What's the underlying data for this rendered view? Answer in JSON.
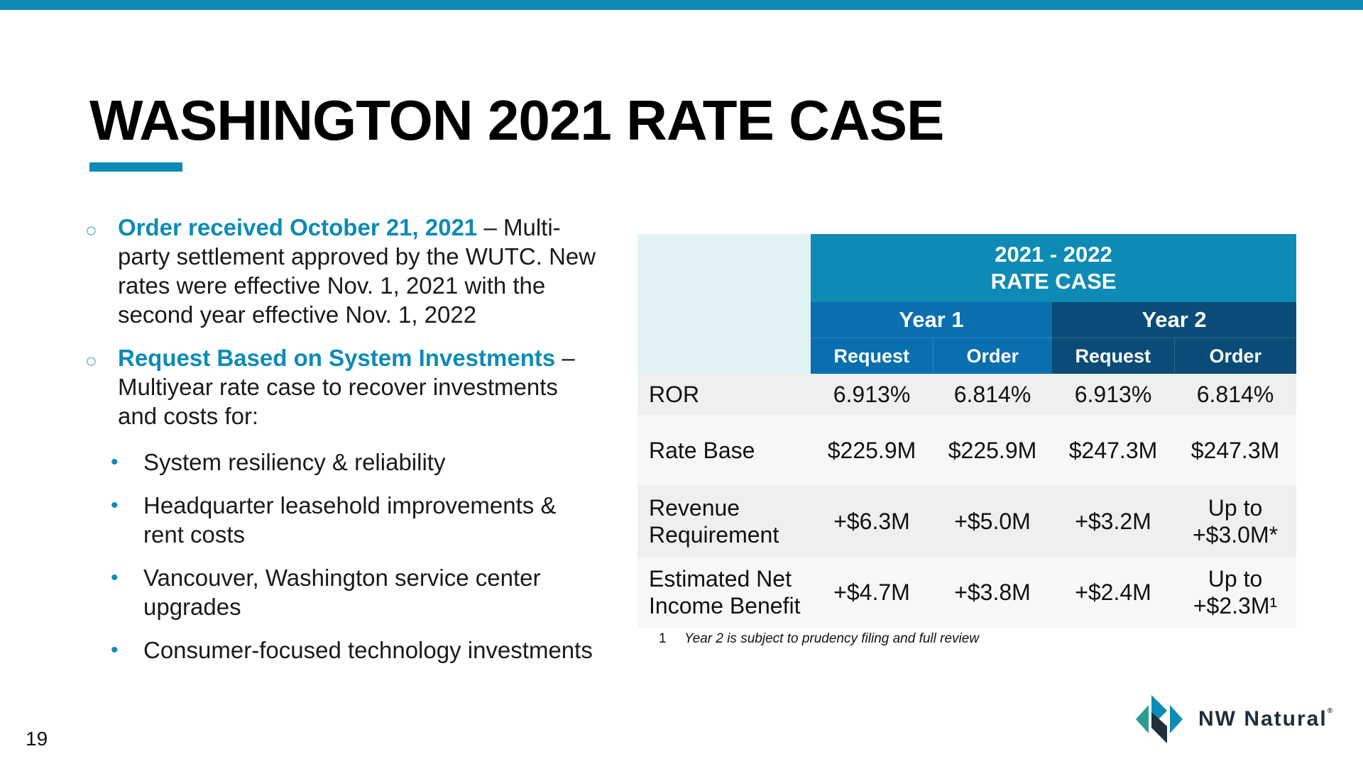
{
  "title": "WASHINGTON 2021 RATE CASE",
  "page_number": "19",
  "bullets": [
    {
      "lead": "Order received October 21, 2021",
      "text": " – Multi-party settlement approved by the WUTC. New rates were effective Nov. 1, 2021 with the second year effective Nov. 1, 2022"
    },
    {
      "lead": "Request Based on System Investments",
      "text": " – Multiyear rate case to recover investments and costs for:"
    }
  ],
  "sub_bullets": [
    "System resiliency & reliability",
    "Headquarter leasehold improvements & rent costs",
    "Vancouver, Washington service center upgrades",
    "Consumer-focused technology investments"
  ],
  "table": {
    "header_line1": "2021 - 2022",
    "header_line2": "RATE CASE",
    "year1": "Year 1",
    "year2": "Year 2",
    "sub_headers": [
      "Request",
      "Order",
      "Request",
      "Order"
    ],
    "rows": [
      {
        "label": "ROR",
        "label2": "",
        "values": [
          "6.913%",
          "6.814%",
          "6.913%",
          "6.814%"
        ],
        "last_line2": ""
      },
      {
        "label": "Rate Base",
        "label2": "",
        "values": [
          "$225.9M",
          "$225.9M",
          "$247.3M",
          "$247.3M"
        ],
        "last_line2": ""
      },
      {
        "label": "Revenue",
        "label2": "Requirement",
        "values": [
          "+$6.3M",
          "+$5.0M",
          "+$3.2M",
          "Up to"
        ],
        "last_line2": "+$3.0M*"
      },
      {
        "label": "Estimated Net",
        "label2": "Income Benefit",
        "values": [
          "+$4.7M",
          "+$3.8M",
          "+$2.4M",
          "Up to"
        ],
        "last_line2": "+$2.3M¹"
      }
    ]
  },
  "footnote": {
    "number": "1",
    "text": "Year 2 is subject to prudency filing and full review"
  },
  "logo": {
    "name": "NW Natural",
    "registered": "®",
    "icon": "nw-natural-logo-icon",
    "colors": [
      "#2a9d8f",
      "#0d8bb5",
      "#1f2e3a"
    ]
  },
  "colors": {
    "accent": "#0d8bb5",
    "year1": "#0a6fae",
    "year2": "#0a4c77"
  }
}
